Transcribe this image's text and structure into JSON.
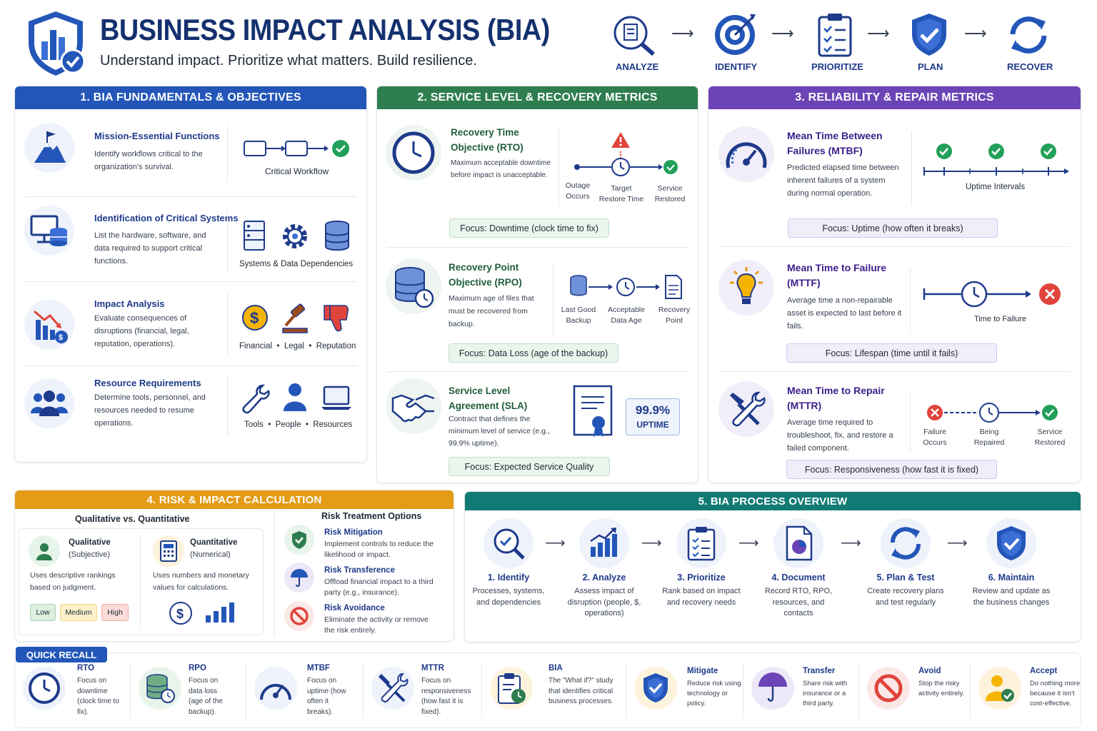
{
  "header": {
    "title": "BUSINESS IMPACT ANALYSIS (BIA)",
    "subtitle": "Understand impact. Prioritize what matters. Build resilience.",
    "steps": [
      "ANALYZE",
      "IDENTIFY",
      "PRIORITIZE",
      "PLAN",
      "RECOVER"
    ]
  },
  "s1": {
    "title": "1. BIA FUNDAMENTALS & OBJECTIVES",
    "items": [
      {
        "title": "Mission-Essential Functions",
        "desc": "Identify workflows critical to the organization's survival.",
        "caption": "Critical Workflow"
      },
      {
        "title": "Identification of Critical Systems",
        "desc": "List the hardware, software, and data required to support critical functions.",
        "caption": "Systems & Data Dependencies"
      },
      {
        "title": "Impact Analysis",
        "desc": "Evaluate consequences of disruptions (financial, legal, reputation, operations).",
        "caption": "Financial  •  Legal  •  Reputation"
      },
      {
        "title": "Resource Requirements",
        "desc": "Determine tools, personnel, and resources needed to resume operations.",
        "caption": "Tools  •  People  •  Resources"
      }
    ]
  },
  "s2": {
    "title": "2. SERVICE LEVEL & RECOVERY METRICS",
    "rto": {
      "title": "Recovery Time Objective (RTO)",
      "desc": "Maximum acceptable downtime before impact is unacceptable.",
      "l1": "Outage Occurs",
      "l2": "Target Restore Time",
      "l3": "Service Restored",
      "focus": "Focus: Downtime (clock time to fix)"
    },
    "rpo": {
      "title": "Recovery Point Objective (RPO)",
      "desc": "Maximum age of files that must be recovered from backup.",
      "l1": "Last Good Backup",
      "l2": "Acceptable Data Age",
      "l3": "Recovery Point",
      "focus": "Focus: Data Loss (age of the backup)"
    },
    "sla": {
      "title": "Service Level Agreement (SLA)",
      "desc": "Contract that defines the minimum level of service (e.g., 99.9% uptime).",
      "badge1": "99.9%",
      "badge2": "UPTIME",
      "focus": "Focus: Expected Service Quality"
    }
  },
  "s3": {
    "title": "3. RELIABILITY & REPAIR METRICS",
    "mtbf": {
      "title": "Mean Time Between Failures (MTBF)",
      "desc": "Predicted elapsed time between inherent failures of a system during normal operation.",
      "caption": "Uptime Intervals",
      "focus": "Focus: Uptime (how often it breaks)"
    },
    "mttf": {
      "title": "Mean Time to Failure (MTTF)",
      "desc": "Average time a non-repairable asset is expected to last before it fails.",
      "caption": "Time to Failure",
      "focus": "Focus: Lifespan (time until it fails)"
    },
    "mttr": {
      "title": "Mean Time to Repair (MTTR)",
      "desc": "Average time required to troubleshoot, fix, and restore a failed component.",
      "l1": "Failure Occurs",
      "l2": "Being Repaired",
      "l3": "Service Restored",
      "focus": "Focus: Responsiveness (how fast it is fixed)"
    }
  },
  "s4": {
    "title": "4. RISK & IMPACT CALCULATION",
    "sub": "Qualitative vs. Quantitative",
    "qual": {
      "title": "Qualitative",
      "paren": "(Subjective)",
      "desc": "Uses descriptive rankings based on judgment.",
      "levels": [
        "Low",
        "Medium",
        "High"
      ]
    },
    "quant": {
      "title": "Quantitative",
      "paren": "(Numerical)",
      "desc": "Uses numbers and monetary values for calculations."
    },
    "opt_title": "Risk Treatment Options",
    "options": [
      {
        "title": "Risk Mitigation",
        "desc": "Implement controls to reduce the likelihood or impact."
      },
      {
        "title": "Risk Transference",
        "desc": "Offload financial impact to a third party (e.g., insurance)."
      },
      {
        "title": "Risk Avoidance",
        "desc": "Eliminate the activity or remove the risk entirely."
      }
    ]
  },
  "s5": {
    "title": "5. BIA PROCESS OVERVIEW",
    "steps": [
      {
        "title": "1. Identify",
        "desc": "Processes, systems, and dependencies"
      },
      {
        "title": "2. Analyze",
        "desc": "Assess impact of disruption (people, $, operations)"
      },
      {
        "title": "3. Prioritize",
        "desc": "Rank based on impact and recovery needs"
      },
      {
        "title": "4. Document",
        "desc": "Record RTO, RPO, resources, and contacts"
      },
      {
        "title": "5. Plan & Test",
        "desc": "Create recovery plans and test regularly"
      },
      {
        "title": "6. Maintain",
        "desc": "Review and update as the business changes"
      }
    ]
  },
  "recall": {
    "title": "QUICK RECALL",
    "items": [
      {
        "title": "RTO",
        "desc": "Focus on downtime (clock time to fix)."
      },
      {
        "title": "RPO",
        "desc": "Focus on data loss (age of the backup)."
      },
      {
        "title": "MTBF",
        "desc": "Focus on uptime (how often it breaks)."
      },
      {
        "title": "MTTR",
        "desc": "Focus on responsiveness (how fast it is fixed)."
      },
      {
        "title": "BIA",
        "desc": "The \"What if?\" study that identifies critical business processes."
      },
      {
        "title": "Mitigate",
        "desc": "Reduce risk using technology or policy."
      },
      {
        "title": "Transfer",
        "desc": "Share risk with insurance or a third party."
      },
      {
        "title": "Avoid",
        "desc": "Stop the risky activity entirely."
      },
      {
        "title": "Accept",
        "desc": "Do nothing more because it isn't cost-effective."
      }
    ]
  },
  "colors": {
    "blue": "#2356b8",
    "green": "#2e7d4f",
    "purple": "#6b44b5",
    "orange": "#e49b16",
    "teal": "#127a74",
    "navy": "#1e3a8a"
  }
}
